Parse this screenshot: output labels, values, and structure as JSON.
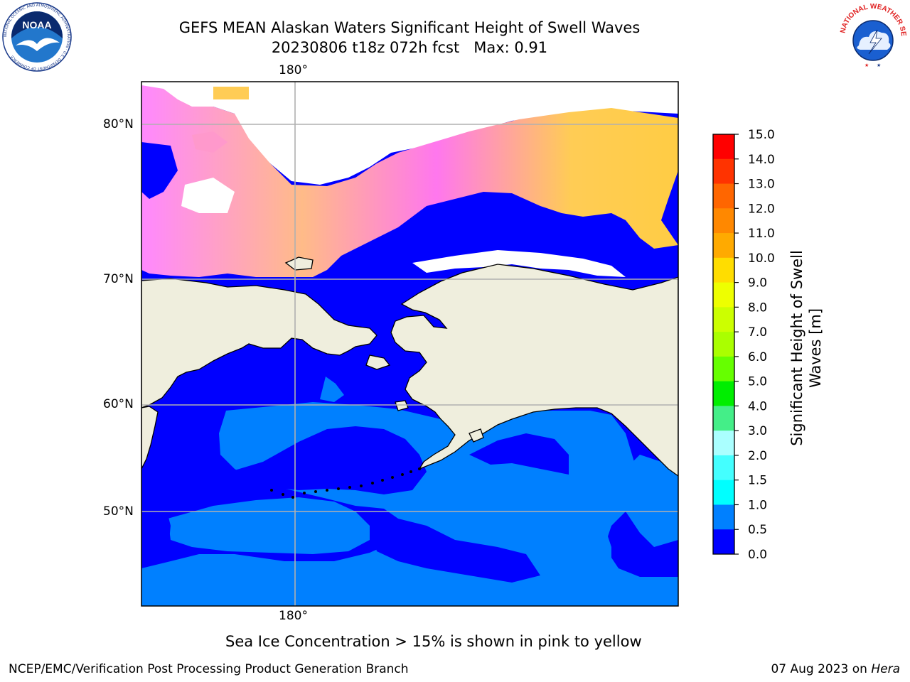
{
  "header": {
    "title_line1": "GEFS MEAN Alaskan Waters Significant Height of Swell Waves",
    "title_line2": "20230806 t18z 072h fcst   Max: 0.91"
  },
  "map": {
    "lon_label_top": "180°",
    "lon_label_bottom": "180°",
    "lat_labels": [
      "80°N",
      "70°N",
      "60°N",
      "50°N"
    ],
    "ocean_colors": {
      "deep": "#0000ff",
      "light": "#0080ff"
    },
    "ice_colors": [
      "#ff66ff",
      "#ff99dd",
      "#ffb366",
      "#ffcc44"
    ],
    "land_color": "#efeedd"
  },
  "colorbar": {
    "label_line1": "Significant Height of Swell",
    "label_line2": "Waves [m]",
    "ticks": [
      "15.0",
      "14.0",
      "13.0",
      "12.0",
      "11.0",
      "10.0",
      "9.0",
      "8.0",
      "7.0",
      "6.0",
      "5.0",
      "4.0",
      "3.0",
      "2.0",
      "1.5",
      "1.0",
      "0.5",
      "0.0"
    ],
    "colors": [
      "#ff0000",
      "#ff3300",
      "#ff6600",
      "#ff8800",
      "#ffaa00",
      "#ffdd00",
      "#eeff00",
      "#ccff00",
      "#aaff00",
      "#66ff00",
      "#00ee00",
      "#44ee88",
      "#aaffff",
      "#44ffff",
      "#00ffff",
      "#0080ff",
      "#0000ff"
    ]
  },
  "footer": {
    "note": "Sea Ice Concentration > 15% is shown in pink to yellow",
    "left": "NCEP/EMC/Verification Post Processing Product Generation Branch",
    "right_prefix": "07 Aug 2023 on ",
    "right_host": "Hera"
  },
  "logos": {
    "noaa_text": "NOAA",
    "nws_text": "NATIONAL WEATHER SERVICE",
    "noaa_ring_text": "NATIONAL OCEANIC AND ATMOSPHERIC ADMINISTRATION · U.S. DEPARTMENT OF COMMERCE"
  }
}
